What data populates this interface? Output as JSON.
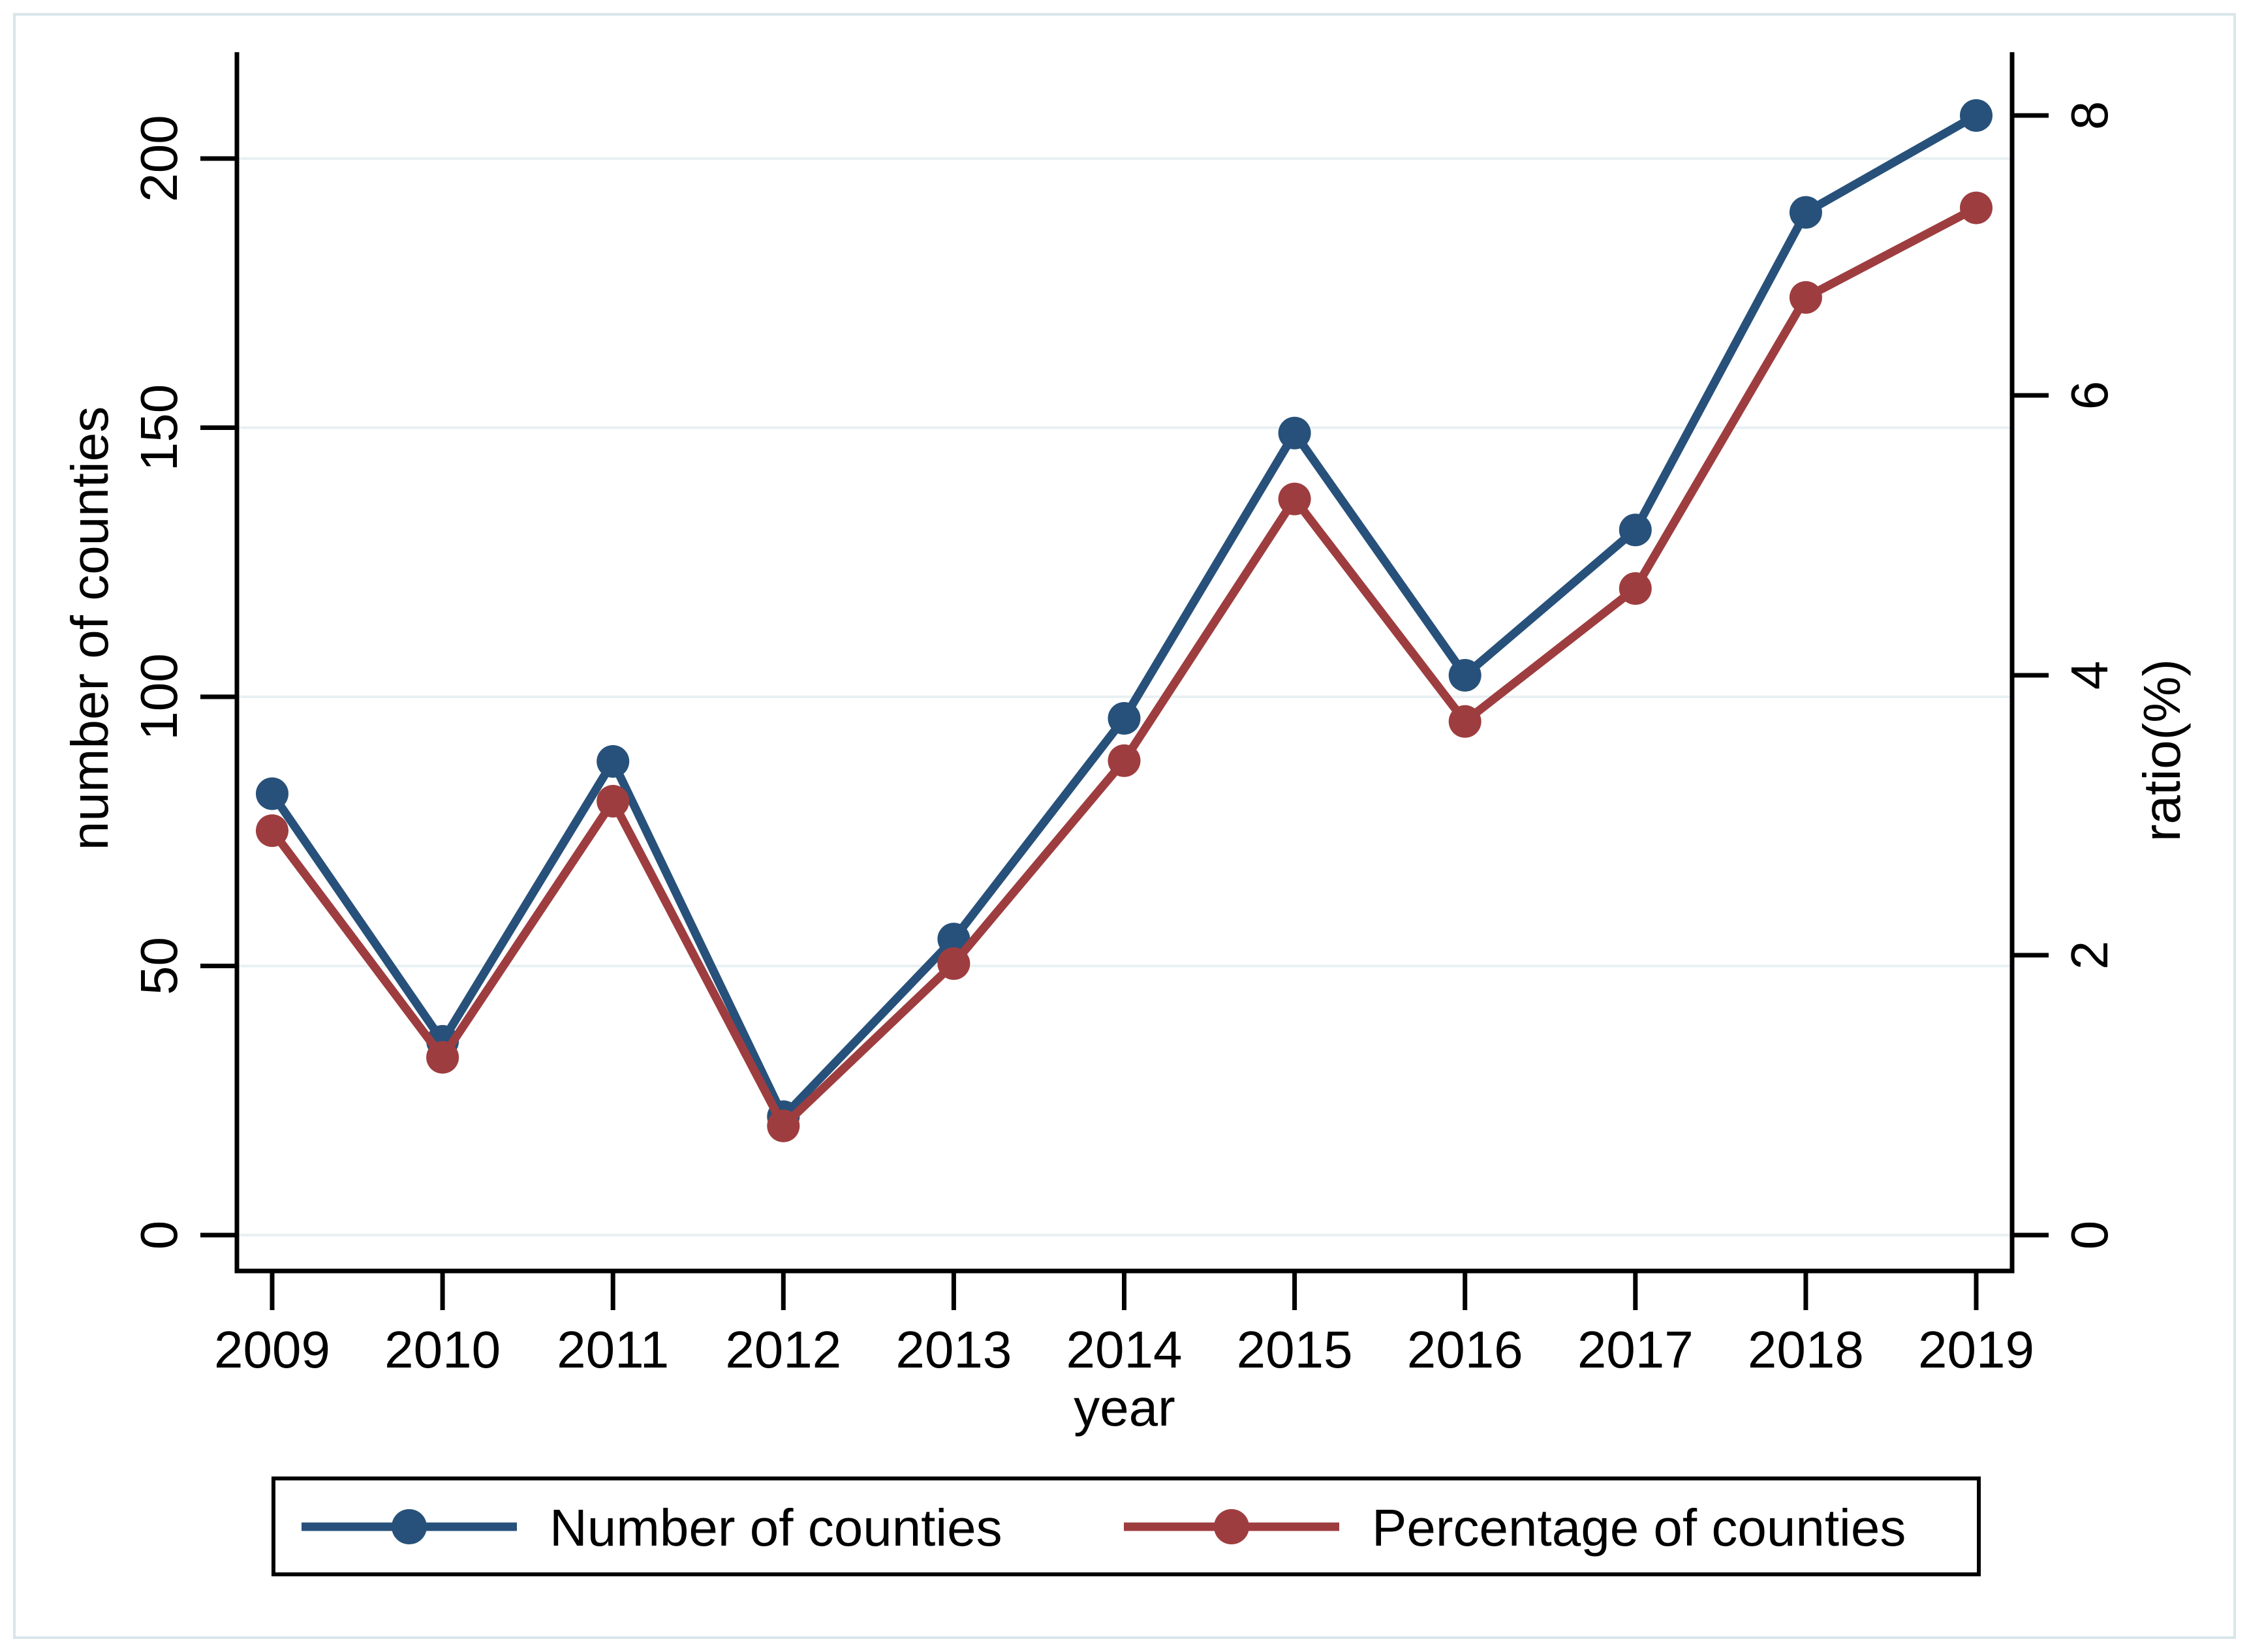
{
  "chart_data": {
    "type": "line",
    "title": "",
    "x_categories": [
      "2009",
      "2010",
      "2011",
      "2012",
      "2013",
      "2014",
      "2015",
      "2016",
      "2017",
      "2018",
      "2019"
    ],
    "xlabel": "year",
    "left_axis": {
      "title": "number of counties",
      "ticks": [
        "0",
        "50",
        "100",
        "150",
        "200"
      ],
      "min": 0,
      "max": 200
    },
    "right_axis": {
      "title": "ratio(%)",
      "ticks": [
        "0",
        "2",
        "4",
        "6",
        "8"
      ],
      "min": 0,
      "max": 8
    },
    "grid": true,
    "legend_position": "bottom",
    "series": [
      {
        "name": "Number of counties",
        "axis": "left",
        "color": "#27517a",
        "marker": "circle",
        "values": [
          82,
          36,
          88,
          22,
          55,
          96,
          149,
          104,
          131,
          190,
          208
        ]
      },
      {
        "name": "Percentage of counties",
        "axis": "right",
        "color": "#9e3d3f",
        "marker": "circle",
        "values": [
          2.89,
          1.27,
          3.1,
          0.78,
          1.94,
          3.39,
          5.26,
          3.67,
          4.62,
          6.7,
          7.34
        ]
      }
    ]
  },
  "colors": {
    "grid": "#e8f0f3",
    "axis": "#000000",
    "frame": "#d9e5ea",
    "background": "#ffffff",
    "legend_border": "#000000"
  }
}
